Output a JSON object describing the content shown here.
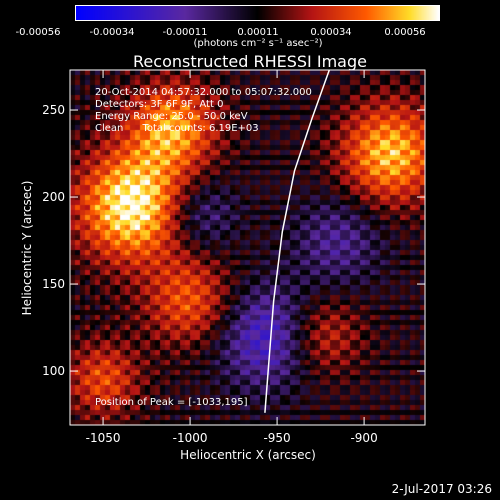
{
  "chart_data": {
    "type": "heatmap",
    "title": "Reconstructed RHESSI Image",
    "xlabel": "Heliocentric X (arcsec)",
    "ylabel": "Heliocentric Y (arcsec)",
    "xlim": [
      -1069,
      -865
    ],
    "ylim": [
      69,
      273
    ],
    "xticks": [
      -1050,
      -1000,
      -950,
      -900
    ],
    "yticks": [
      100,
      150,
      200,
      250
    ],
    "colorbar": {
      "ticks": [
        "-0.00056",
        "-0.00034",
        "-0.00011",
        "0.00011",
        "0.00034",
        "0.00056"
      ],
      "range": [
        -0.00056,
        0.00056
      ],
      "unit_label": "(photons cm⁻² s⁻¹ asec⁻²)"
    },
    "annotations": [
      "20-Oct-2014 04:57:32.000 to 05:07:32.000",
      "Detectors: 3F 6F 9F, Att 0",
      "Energy Range: 25.0 - 50.0 keV",
      "Clean      Total counts: 6.19E+03"
    ],
    "peak_label": "Position of Peak = [-1033,195]",
    "peak": [
      -1033,
      195
    ],
    "limb_curve": [
      [
        -957,
        76
      ],
      [
        -952,
        140
      ],
      [
        -947,
        180
      ],
      [
        -940,
        215
      ],
      [
        -930,
        245
      ],
      [
        -920,
        273
      ]
    ],
    "bright_regions": [
      {
        "x": -1033,
        "y": 195,
        "amp": 0.00056,
        "sigma": 22
      },
      {
        "x": -1010,
        "y": 240,
        "amp": 0.0004,
        "sigma": 18
      },
      {
        "x": -885,
        "y": 225,
        "amp": 0.00045,
        "sigma": 20
      },
      {
        "x": -1000,
        "y": 140,
        "amp": 0.0003,
        "sigma": 18
      },
      {
        "x": -1050,
        "y": 95,
        "amp": 0.00028,
        "sigma": 15
      },
      {
        "x": -925,
        "y": 120,
        "amp": 0.00025,
        "sigma": 16
      }
    ],
    "dark_regions": [
      {
        "x": -955,
        "y": 120,
        "amp": -0.00034,
        "sigma": 20
      },
      {
        "x": -995,
        "y": 190,
        "amp": -0.00022,
        "sigma": 15
      },
      {
        "x": -915,
        "y": 175,
        "amp": -0.0002,
        "sigma": 18
      }
    ]
  },
  "footer": {
    "timestamp": "2-Jul-2017 03:26"
  }
}
